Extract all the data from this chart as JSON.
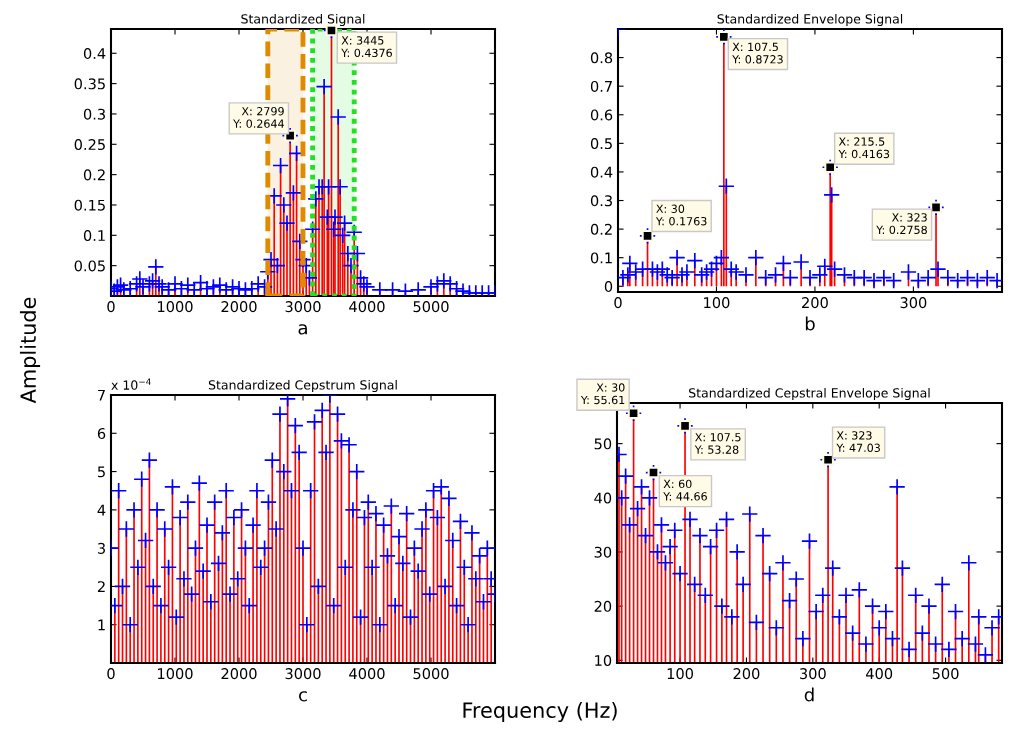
{
  "chart_data": [
    {
      "type": "lollipop",
      "title": "Standardized Signal",
      "xlabel": "a",
      "ylabel": "Amplitude",
      "marker": "cross",
      "grid": false,
      "x": [
        0,
        50,
        100,
        150,
        200,
        300,
        400,
        450,
        500,
        600,
        650,
        700,
        750,
        800,
        900,
        1000,
        1100,
        1200,
        1300,
        1400,
        1500,
        1600,
        1700,
        1800,
        1900,
        2000,
        2100,
        2200,
        2300,
        2400,
        2450,
        2500,
        2550,
        2600,
        2650,
        2700,
        2750,
        2799,
        2850,
        2900,
        2950,
        3000,
        3050,
        3100,
        3150,
        3200,
        3250,
        3300,
        3330,
        3380,
        3400,
        3445,
        3480,
        3500,
        3550,
        3580,
        3620,
        3650,
        3700,
        3750,
        3800,
        3850,
        3900,
        3950,
        4000,
        4200,
        4400,
        4600,
        4800,
        5000,
        5100,
        5200,
        5300,
        5400,
        5500,
        5600,
        5700,
        5800,
        5900,
        6000
      ],
      "series": [
        {
          "color": "#0000ff",
          "values": [
            0.012,
            0.008,
            0.015,
            0.018,
            0.01,
            0.012,
            0.02,
            0.028,
            0.015,
            0.02,
            0.025,
            0.048,
            0.02,
            0.015,
            0.01,
            0.02,
            0.012,
            0.018,
            0.01,
            0.022,
            0.012,
            0.015,
            0.018,
            0.01,
            0.015,
            0.012,
            0.01,
            0.012,
            0.02,
            0.015,
            0.04,
            0.06,
            0.165,
            0.05,
            0.215,
            0.15,
            0.12,
            0.2644,
            0.17,
            0.235,
            0.09,
            0.06,
            0.05,
            0.03,
            0.11,
            0.16,
            0.18,
            0.18,
            0.345,
            0.13,
            0.18,
            0.4376,
            0.11,
            0.13,
            0.295,
            0.18,
            0.1,
            0.12,
            0.07,
            0.05,
            0.105,
            0.07,
            0.03,
            0.02,
            0.015,
            0.01,
            0.01,
            0.008,
            0.01,
            0.015,
            0.02,
            0.025,
            0.02,
            0.012,
            0.008,
            0.005,
            0.005,
            0.005,
            0.005,
            0.005
          ]
        }
      ],
      "xlim": [
        0,
        6000
      ],
      "xticks": [
        0,
        1000,
        2000,
        3000,
        4000,
        5000
      ],
      "ylim": [
        0,
        0.44
      ],
      "yticks": [
        0.05,
        0.1,
        0.15,
        0.2,
        0.25,
        0.3,
        0.35,
        0.4
      ],
      "bands": [
        {
          "axis": "x",
          "from": 2450,
          "to": 3000,
          "color": "#e08a00"
        },
        {
          "axis": "x",
          "from": 3150,
          "to": 3800,
          "color": "#22e022"
        }
      ],
      "annotations": [
        "Frequency (Hz)",
        {
          "text": "X: 2799\nY: 0.2644",
          "x": 2799,
          "y": 0.2644
        },
        {
          "text": "X: 3445\nY: 0.4376",
          "x": 3445,
          "y": 0.4376
        }
      ]
    },
    {
      "type": "lollipop",
      "title": "Standardized Envelope Signal",
      "xlabel": "b",
      "marker": "cross",
      "grid": false,
      "x": [
        0,
        5,
        10,
        12,
        18,
        25,
        30,
        35,
        40,
        45,
        50,
        55,
        60,
        65,
        70,
        78,
        85,
        90,
        95,
        100,
        105,
        107.5,
        110,
        115,
        120,
        130,
        140,
        150,
        160,
        168,
        175,
        186,
        195,
        205,
        210,
        215.5,
        217,
        220,
        230,
        240,
        250,
        260,
        270,
        280,
        295,
        305,
        315,
        323,
        325,
        335,
        345,
        355,
        365,
        375,
        385
      ],
      "series": [
        {
          "color": "#0000ff",
          "values": [
            0.9,
            0.03,
            0.04,
            0.08,
            0.05,
            0.06,
            0.1763,
            0.06,
            0.05,
            0.06,
            0.04,
            0.03,
            0.1,
            0.04,
            0.05,
            0.09,
            0.04,
            0.05,
            0.06,
            0.08,
            0.1,
            0.8723,
            0.35,
            0.06,
            0.05,
            0.04,
            0.1,
            0.03,
            0.04,
            0.08,
            0.03,
            0.085,
            0.03,
            0.04,
            0.07,
            0.4163,
            0.32,
            0.06,
            0.04,
            0.03,
            0.03,
            0.02,
            0.03,
            0.02,
            0.05,
            0.02,
            0.03,
            0.2758,
            0.06,
            0.03,
            0.02,
            0.03,
            0.02,
            0.03,
            0.02
          ]
        }
      ],
      "xlim": [
        0,
        390
      ],
      "xticks": [
        0,
        100,
        200,
        300
      ],
      "ylim": [
        -0.02,
        0.9
      ],
      "yticks": [
        0,
        0.1,
        0.2,
        0.3,
        0.4,
        0.5,
        0.6,
        0.7,
        0.8
      ],
      "annotations": [
        {
          "text": "X: 30\nY: 0.1763",
          "x": 30,
          "y": 0.1763
        },
        {
          "text": "X: 107.5\nY: 0.8723",
          "x": 107.5,
          "y": 0.8723
        },
        {
          "text": "X: 215.5\nY: 0.4163",
          "x": 215.5,
          "y": 0.4163
        },
        {
          "text": "X: 323\nY: 0.2758",
          "x": 323,
          "y": 0.2758
        }
      ]
    },
    {
      "type": "lollipop",
      "title": "Standardized Cepstrum Signal",
      "xlabel": "c",
      "marker": "cross",
      "grid": false,
      "x": [
        0,
        60,
        120,
        180,
        240,
        300,
        360,
        420,
        480,
        540,
        600,
        660,
        720,
        780,
        840,
        900,
        960,
        1020,
        1080,
        1140,
        1200,
        1260,
        1320,
        1380,
        1440,
        1500,
        1560,
        1620,
        1680,
        1740,
        1800,
        1860,
        1920,
        1980,
        2040,
        2100,
        2160,
        2220,
        2280,
        2340,
        2400,
        2460,
        2520,
        2580,
        2640,
        2700,
        2760,
        2820,
        2880,
        2940,
        3000,
        3060,
        3120,
        3180,
        3240,
        3300,
        3360,
        3420,
        3480,
        3540,
        3600,
        3660,
        3720,
        3780,
        3840,
        3900,
        3960,
        4020,
        4080,
        4140,
        4200,
        4260,
        4320,
        4380,
        4440,
        4500,
        4560,
        4620,
        4680,
        4740,
        4800,
        4860,
        4920,
        4980,
        5040,
        5100,
        5160,
        5220,
        5280,
        5340,
        5400,
        5460,
        5520,
        5580,
        5640,
        5700,
        5760,
        5820,
        5880,
        5940,
        6000
      ],
      "series": [
        {
          "color": "#0000ff",
          "values": [
            3.0,
            1.5,
            4.5,
            2.0,
            3.5,
            1.0,
            4.0,
            2.5,
            4.8,
            3.2,
            5.3,
            2.0,
            4.0,
            1.5,
            3.5,
            2.5,
            4.6,
            1.2,
            3.8,
            2.2,
            4.2,
            1.8,
            3.0,
            4.7,
            2.4,
            3.6,
            1.6,
            4.2,
            2.6,
            3.4,
            4.5,
            1.8,
            3.8,
            2.2,
            4.0,
            3.0,
            1.5,
            3.6,
            4.5,
            2.5,
            3.0,
            4.2,
            5.3,
            3.5,
            6.5,
            5.0,
            6.9,
            4.5,
            6.2,
            5.5,
            3.0,
            1.0,
            4.5,
            6.3,
            2.0,
            6.6,
            5.5,
            7.0,
            1.5,
            6.5,
            5.8,
            2.5,
            5.7,
            4.0,
            5.0,
            1.2,
            3.8,
            4.2,
            2.5,
            3.9,
            1.0,
            3.6,
            2.8,
            4.1,
            1.5,
            3.3,
            2.6,
            3.9,
            1.2,
            3.0,
            2.4,
            3.5,
            4.0,
            1.8,
            4.5,
            3.8,
            4.6,
            2.0,
            4.3,
            3.2,
            1.5,
            3.7,
            2.5,
            1.0,
            3.4,
            2.2,
            2.8,
            1.6,
            3.0,
            2.2,
            1.8
          ]
        }
      ],
      "xlim": [
        0,
        6000
      ],
      "xticks": [
        0,
        1000,
        2000,
        3000,
        4000,
        5000
      ],
      "ylim": [
        0,
        7
      ],
      "yticks": [
        1,
        2,
        3,
        4,
        5,
        6,
        7
      ],
      "annotations": [
        "x 10$^{−4}$"
      ]
    },
    {
      "type": "lollipop",
      "title": "Standardized Cepstral Envelope Signal",
      "xlabel": "d",
      "marker": "cross",
      "grid": false,
      "x": [
        8,
        12,
        18,
        24,
        30,
        36,
        42,
        48,
        54,
        60,
        66,
        72,
        78,
        85,
        92,
        100,
        107.5,
        115,
        122,
        130,
        138,
        146,
        155,
        163,
        170,
        178,
        186,
        195,
        205,
        215,
        225,
        235,
        245,
        255,
        265,
        275,
        285,
        295,
        305,
        315,
        323,
        330,
        340,
        350,
        360,
        370,
        380,
        390,
        400,
        410,
        420,
        427,
        435,
        445,
        455,
        465,
        475,
        485,
        495,
        505,
        515,
        525,
        535,
        545,
        550,
        560,
        570,
        580
      ],
      "series": [
        {
          "color": "#0000ff",
          "values": [
            48,
            40,
            44,
            35,
            55.61,
            38,
            42,
            33,
            40,
            44.66,
            30,
            35,
            28,
            31,
            34,
            26,
            53.28,
            36,
            24,
            33,
            22,
            31,
            34,
            20,
            36,
            18,
            30,
            24,
            37,
            17,
            33,
            26,
            16,
            28,
            21,
            25,
            14,
            32,
            19,
            22,
            47.03,
            27,
            18,
            22,
            15,
            23,
            13,
            20,
            16,
            19,
            14,
            42,
            27,
            12,
            22,
            15,
            20,
            13,
            24,
            12,
            19,
            14,
            28,
            13,
            18,
            11,
            16,
            18
          ]
        }
      ],
      "xlim": [
        5,
        585
      ],
      "xticks": [
        100,
        200,
        300,
        400,
        500
      ],
      "ylim": [
        9.5,
        57.5
      ],
      "yticks": [
        10,
        20,
        30,
        40,
        50
      ],
      "annotations": [
        {
          "text": "X: 30\nY: 55.61",
          "x": 30,
          "y": 55.61
        },
        {
          "text": "X: 60\nY: 44.66",
          "x": 60,
          "y": 44.66
        },
        {
          "text": "X: 107.5\nY: 53.28",
          "x": 107.5,
          "y": 53.28
        },
        {
          "text": "X: 323\nY: 47.03",
          "x": 323,
          "y": 47.03
        }
      ]
    }
  ]
}
